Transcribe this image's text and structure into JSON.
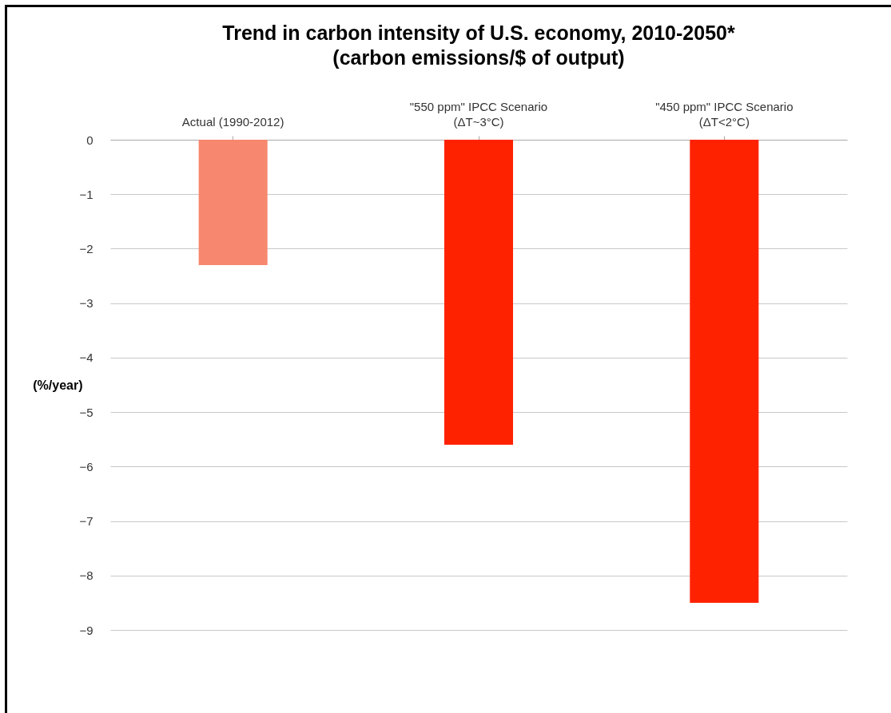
{
  "chart_data": {
    "type": "bar",
    "title": "Trend in carbon intensity of U.S. economy, 2010-2050*",
    "subtitle": "(carbon emissions/$ of output)",
    "ylabel": "(%/year)",
    "categories": [
      "Actual (1990-2012)",
      "\"550 ppm\" IPCC Scenario\n(ΔT~3°C)",
      "\"450 ppm\" IPCC Scenario\n(ΔT<2°C)"
    ],
    "values": [
      -2.3,
      -5.6,
      -8.5
    ],
    "colors": [
      "#f7876f",
      "#ff2200",
      "#ff2200"
    ],
    "ylim": [
      -9,
      0
    ],
    "yticks": [
      0,
      -1,
      -2,
      -3,
      -4,
      -5,
      -6,
      -7,
      -8,
      -9
    ],
    "grid": "y"
  }
}
